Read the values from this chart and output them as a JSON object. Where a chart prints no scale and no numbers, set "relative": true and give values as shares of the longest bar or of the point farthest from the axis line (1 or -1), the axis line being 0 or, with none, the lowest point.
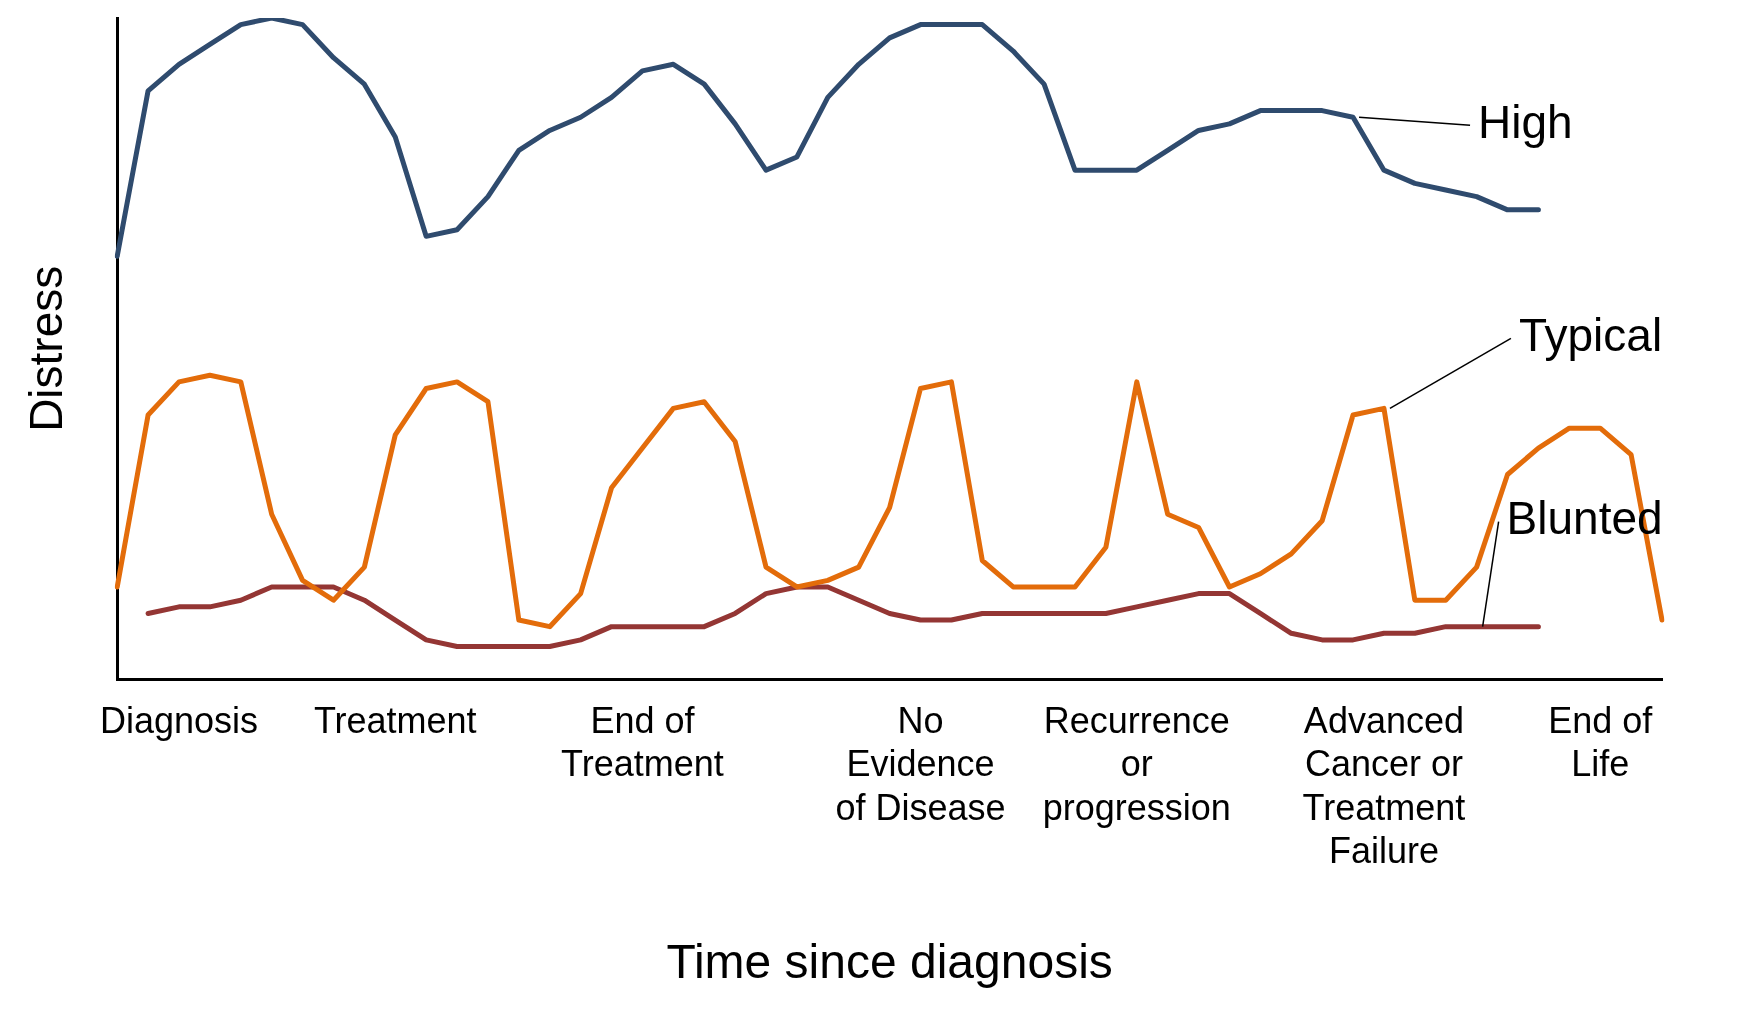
{
  "chart_data": {
    "type": "line",
    "relative": true,
    "xlabel": "Time since diagnosis",
    "ylabel": "Distress",
    "marker": "none",
    "line_style": "solid",
    "categories": [
      null,
      null,
      "Diagnosis",
      null,
      null,
      null,
      null,
      null,
      null,
      "Treatment",
      null,
      null,
      null,
      null,
      null,
      null,
      null,
      "End of Treatment",
      null,
      null,
      null,
      null,
      null,
      null,
      null,
      null,
      "No Evidence of Disease",
      null,
      null,
      null,
      null,
      null,
      null,
      "Recurrence or progression",
      null,
      null,
      null,
      null,
      null,
      null,
      null,
      "Advanced Cancer or Treatment Failure",
      null,
      null,
      null,
      null,
      null,
      null,
      "End of Life",
      null,
      null
    ],
    "series": [
      {
        "name": "High",
        "color": "#2f4b6e",
        "values": [
          0.64,
          0.89,
          0.93,
          0.96,
          0.99,
          1.0,
          0.99,
          0.94,
          0.9,
          0.82,
          0.67,
          0.68,
          0.73,
          0.8,
          0.83,
          0.85,
          0.88,
          0.92,
          0.93,
          0.9,
          0.84,
          0.77,
          0.79,
          0.88,
          0.93,
          0.97,
          0.99,
          0.99,
          0.99,
          0.95,
          0.9,
          0.77,
          0.77,
          0.77,
          0.8,
          0.83,
          0.84,
          0.86,
          0.86,
          0.86,
          0.85,
          0.77,
          0.75,
          0.74,
          0.73,
          0.71,
          0.71,
          null,
          null,
          null,
          null
        ]
      },
      {
        "name": "Typical",
        "color": "#e36c0a",
        "values": [
          0.14,
          0.4,
          0.45,
          0.46,
          0.45,
          0.25,
          0.15,
          0.12,
          0.17,
          0.37,
          0.44,
          0.45,
          0.42,
          0.09,
          0.08,
          0.13,
          0.29,
          0.35,
          0.41,
          0.42,
          0.36,
          0.17,
          0.14,
          0.15,
          0.17,
          0.26,
          0.44,
          0.45,
          0.18,
          0.14,
          0.14,
          0.14,
          0.2,
          0.45,
          0.25,
          0.23,
          0.14,
          0.16,
          0.19,
          0.24,
          0.4,
          0.41,
          0.12,
          0.12,
          0.17,
          0.31,
          0.35,
          0.38,
          0.38,
          0.34,
          0.09
        ]
      },
      {
        "name": "Blunted",
        "color": "#943634",
        "values": [
          null,
          0.1,
          0.11,
          0.11,
          0.12,
          0.14,
          0.14,
          0.14,
          0.12,
          0.09,
          0.06,
          0.05,
          0.05,
          0.05,
          0.05,
          0.06,
          0.08,
          0.08,
          0.08,
          0.08,
          0.1,
          0.13,
          0.14,
          0.14,
          0.12,
          0.1,
          0.09,
          0.09,
          0.1,
          0.1,
          0.1,
          0.1,
          0.1,
          0.11,
          0.12,
          0.13,
          0.13,
          0.1,
          0.07,
          0.06,
          0.06,
          0.07,
          0.07,
          0.08,
          0.08,
          0.08,
          0.08,
          null,
          null,
          null,
          null
        ]
      }
    ]
  }
}
